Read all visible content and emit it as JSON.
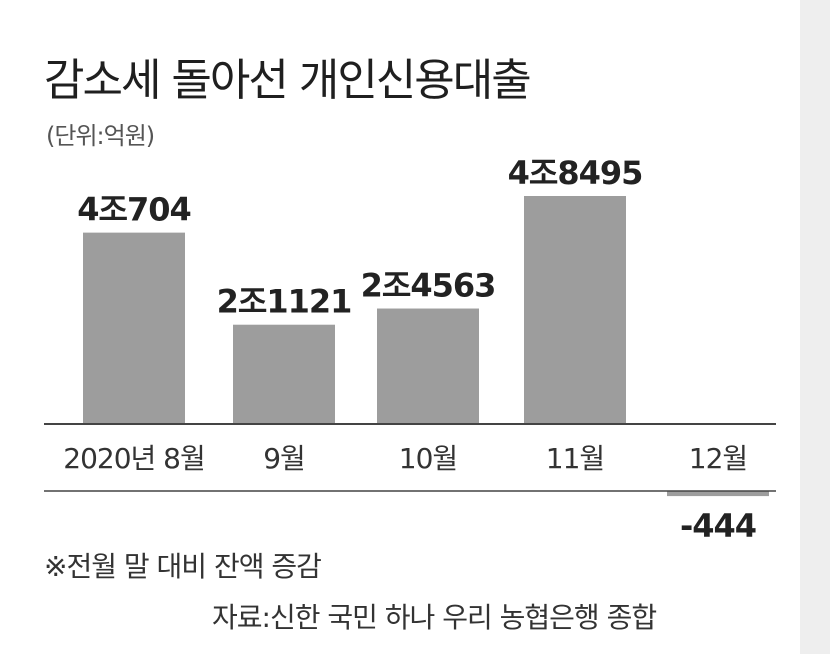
{
  "title": "감소세 돌아선 개인신용대출",
  "unit": "(단위:억원)",
  "note": "※전월 말 대비 잔액 증감",
  "source": "자료:신한 국민 하나 우리 농협은행 종합",
  "colors": {
    "bar": "#9d9d9d",
    "negative_bar": "#9d9d9d",
    "axis": "#444444",
    "text": "#222222"
  },
  "chart_data": {
    "type": "bar",
    "title": "감소세 돌아선 개인신용대출",
    "ylabel": "(단위:억원)",
    "categories": [
      "2020년 8월",
      "9월",
      "10월",
      "11월",
      "12월"
    ],
    "values": [
      40704,
      21121,
      24563,
      48495,
      -444
    ],
    "value_labels": [
      "4조704",
      "2조1121",
      "2조4563",
      "4조8495",
      "-444"
    ],
    "grid": false,
    "legend": "none"
  }
}
